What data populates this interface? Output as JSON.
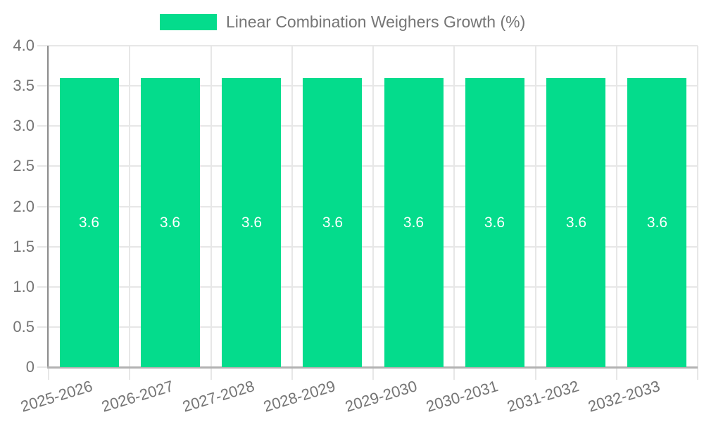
{
  "chart_data": {
    "type": "bar",
    "title": "",
    "xlabel": "",
    "ylabel": "",
    "categories": [
      "2025-2026",
      "2026-2027",
      "2027-2028",
      "2028-2029",
      "2029-2030",
      "2030-2031",
      "2031-2032",
      "2032-2033"
    ],
    "values": [
      3.6,
      3.6,
      3.6,
      3.6,
      3.6,
      3.6,
      3.6,
      3.6
    ],
    "value_labels": [
      "3.6",
      "3.6",
      "3.6",
      "3.6",
      "3.6",
      "3.6",
      "3.6",
      "3.6"
    ],
    "ylim": [
      0,
      4.0
    ],
    "yticks": {
      "values": [
        0,
        0.5,
        1.0,
        1.5,
        2.0,
        2.5,
        3.0,
        3.5,
        4.0
      ],
      "labels": [
        "0",
        "0.5",
        "1.0",
        "1.5",
        "2.0",
        "2.5",
        "3.0",
        "3.5",
        "4.0"
      ]
    },
    "grid": true,
    "legend": {
      "label": "Linear Combination Weighers Growth (%)",
      "position": "top-center"
    },
    "colors": {
      "bar": "#04DC8C",
      "grid": "#e7e7e7",
      "axis_left": "#8f8f8f",
      "axis_bottom": "#b2b2b2",
      "tick_text": "#757575",
      "bar_label_text": "#ffffff"
    }
  }
}
